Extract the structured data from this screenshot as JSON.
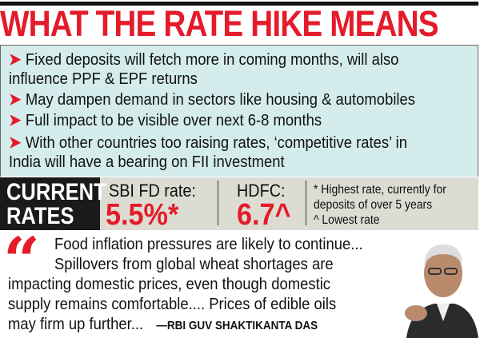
{
  "title": "WHAT THE RATE HIKE MEANS",
  "bullets": [
    {
      "lines": [
        "Fixed deposits will fetch more in coming months, will also",
        "influence PPF & EPF returns"
      ]
    },
    {
      "lines": [
        "May dampen demand in sectors like housing & automobiles"
      ]
    },
    {
      "lines": [
        "Full impact to be visible over next 6-8 months"
      ]
    },
    {
      "lines": [
        "With other countries too raising rates, ‘competitive rates’ in",
        "India will have a bearing on FII investment"
      ]
    }
  ],
  "arrow": "➤",
  "rates": {
    "heading_1": "CURRENT",
    "heading_2": "RATES",
    "sbi_label": "SBI FD rate:",
    "sbi_value": "5.5%*",
    "hdfc_label": "HDFC:",
    "hdfc_value": "6.7^",
    "notes": [
      "* Highest rate, currently for",
      "deposits of over 5 years",
      "^ Lowest rate"
    ]
  },
  "quote": {
    "mark": "“",
    "lines": [
      "Food inflation pressures are likely to continue...",
      "Spillovers from global wheat shortages are",
      "impacting domestic prices, even though domestic",
      "supply remains comfortable.... Prices of edible oils",
      "may firm up further..."
    ],
    "attribution": "—RBI GUV SHAKTIKANTA DAS"
  },
  "colors": {
    "accent": "#e41b2a",
    "bullet_bg": "#d4ecec",
    "rates_bg": "#dddcd3"
  }
}
